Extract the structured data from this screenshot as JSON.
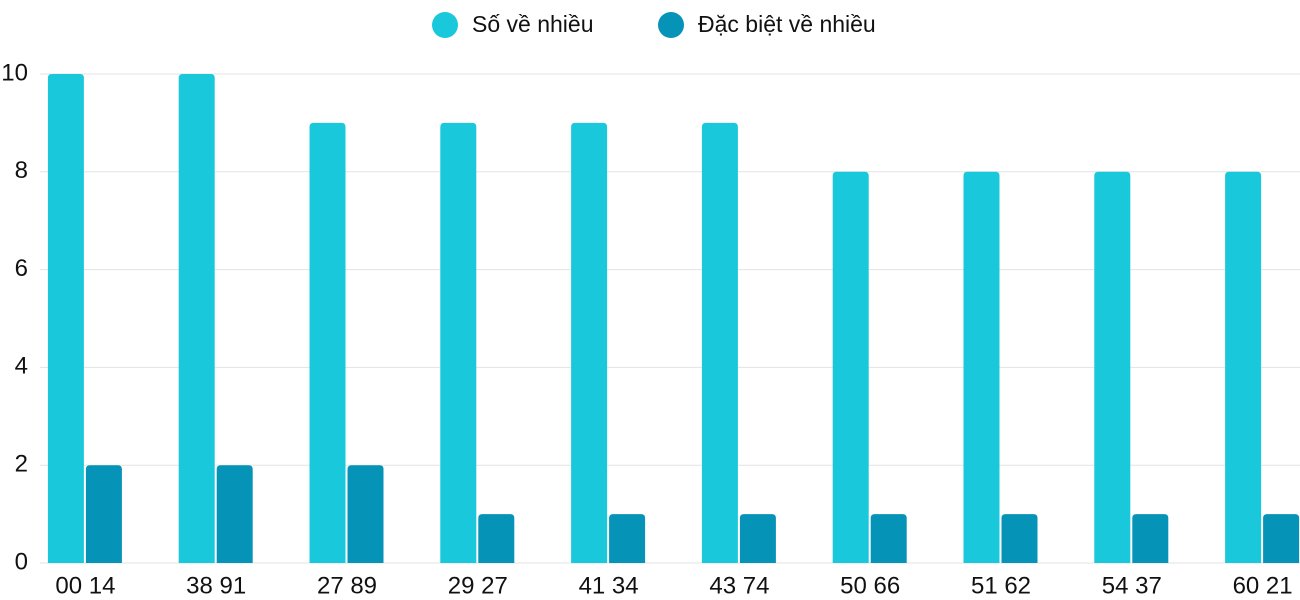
{
  "chart_data": {
    "type": "bar",
    "categories": [
      "00 14",
      "38 91",
      "27 89",
      "29 27",
      "41 34",
      "43 74",
      "50 66",
      "51 62",
      "54 37",
      "60 21"
    ],
    "series": [
      {
        "name": "Số về nhiều",
        "color": "#1ac8db",
        "values": [
          10,
          10,
          9,
          9,
          9,
          9,
          8,
          8,
          8,
          8
        ]
      },
      {
        "name": "Đặc biệt về nhiều",
        "color": "#0593b8",
        "values": [
          2,
          2,
          2,
          1,
          1,
          1,
          1,
          1,
          1,
          1
        ]
      }
    ],
    "ylim": [
      0,
      10
    ],
    "yticks": [
      0,
      2,
      4,
      6,
      8,
      10
    ],
    "grid": true,
    "legend": "top"
  }
}
